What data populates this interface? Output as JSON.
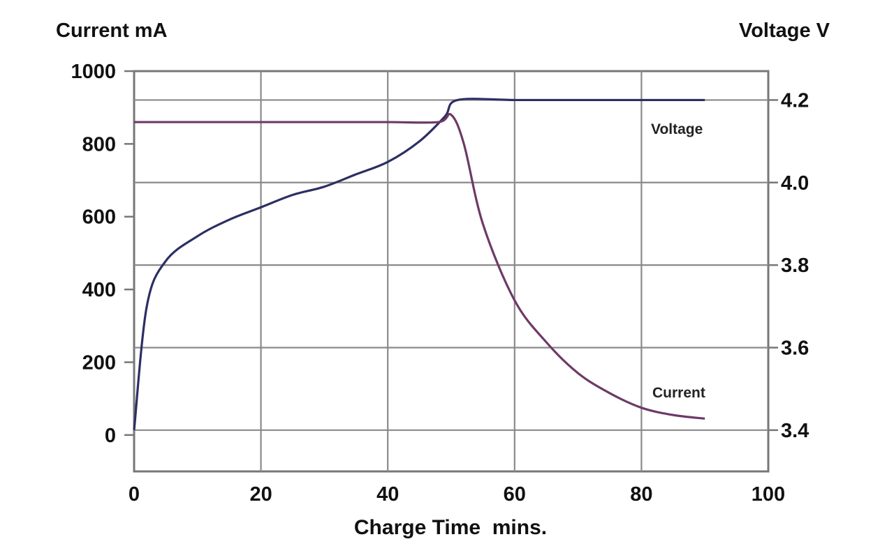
{
  "chart_data": {
    "type": "line",
    "title": "",
    "xlabel": "Charge Time  mins.",
    "ylabel_left": "Current mA",
    "ylabel_right": "Voltage V",
    "xlim": [
      0,
      100
    ],
    "ylim_left": [
      -100,
      1000
    ],
    "ylim_right": [
      3.3,
      4.27
    ],
    "x_ticks": [
      "0",
      "20",
      "40",
      "60",
      "80",
      "100"
    ],
    "y_left_ticks": [
      "0",
      "200",
      "400",
      "600",
      "800",
      "1000"
    ],
    "y_right_ticks": [
      "3.4",
      "3.6",
      "3.8",
      "4.0",
      "4.2"
    ],
    "grid": true,
    "series": [
      {
        "name": "Voltage",
        "axis": "right",
        "color": "#2c2f63",
        "x": [
          0,
          2,
          5,
          10,
          15,
          20,
          25,
          30,
          35,
          40,
          45,
          49,
          51,
          60,
          70,
          80,
          90
        ],
        "y": [
          3.4,
          3.7,
          3.81,
          3.87,
          3.91,
          3.94,
          3.97,
          3.99,
          4.02,
          4.05,
          4.1,
          4.16,
          4.2,
          4.2,
          4.2,
          4.2,
          4.2
        ]
      },
      {
        "name": "Current",
        "axis": "left",
        "color": "#6d3a66",
        "x": [
          0,
          10,
          20,
          30,
          40,
          48,
          50,
          52,
          55,
          60,
          65,
          70,
          75,
          80,
          85,
          90
        ],
        "y": [
          860,
          860,
          860,
          860,
          860,
          860,
          880,
          800,
          580,
          370,
          255,
          170,
          115,
          75,
          55,
          45
        ]
      }
    ],
    "annotations": [
      {
        "text": "Voltage",
        "series": "Voltage"
      },
      {
        "text": "Current",
        "series": "Current"
      }
    ]
  }
}
